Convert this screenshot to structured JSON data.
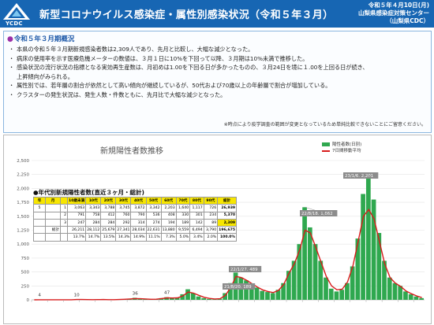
{
  "header": {
    "title": "新型コロナウイルス感染症・属性別感染状況（令和５年３月）",
    "date": "令和５年４月10日(月)",
    "org": "山梨県感染症対策センター",
    "org_short": "（山梨県CDC）",
    "logo_text": "YCDC",
    "bg_color": "#1766b3"
  },
  "summary": {
    "heading": "令和５年３月期概況",
    "bullets": [
      "本県の令和５年３月期新規感染者数は2,309人であり、先月と比較し、大幅な減少となった。",
      "病床の使用率を示す医療危機メーターの数値は、３月１日に10%を下回って以降、３月期は10%未満で推移した。",
      "感染状況の流行状況の指標となる実効再生産数は、月初めは1.00を下回る日が多かったものの、３月24日を境に１.00を上回る日が続き、",
      "上昇傾向がみられる。",
      "属性別では、若年層の割合が依然として高い傾向が継続しているが、50代および70歳以上の年齢層で割合が増加している。",
      "クラスターの発生状況は、発生人数・件数ともに、先月比で大幅な減少となった。"
    ],
    "note": "※時点により疫学調査の範囲が変更となっているため単純比較できないことにご留意ください。"
  },
  "chart": {
    "title": "新規陽性者数推移",
    "legend_bar": "陽性者数(日別)",
    "legend_line": "7日間移動平均",
    "bar_color": "#2fa84f",
    "line_color": "#d81b1b"
  },
  "table": {
    "title": "●年代別新規陽性者数(直近３ヶ月・総計)",
    "headers": [
      "年",
      "月",
      "",
      "10歳未満",
      "10代",
      "20代",
      "30代",
      "40代",
      "50代",
      "60代",
      "70代",
      "80代",
      "90代",
      "総計"
    ],
    "rows": [
      {
        "year": "5",
        "month": "",
        "sub": "1",
        "values": [
          "3,063",
          "3,343",
          "3,788",
          "3,745",
          "3,872",
          "3,342",
          "2,203",
          "1,640",
          "1,117",
          "726"
        ],
        "total": "26,939"
      },
      {
        "year": "",
        "month": "",
        "sub": "2",
        "values": [
          "791",
          "758",
          "412",
          "760",
          "790",
          "536",
          "408",
          "330",
          "301",
          "234"
        ],
        "total": "5,370"
      },
      {
        "year": "",
        "month": "",
        "sub": "3",
        "values": [
          "247",
          "284",
          "284",
          "292",
          "314",
          "274",
          "194",
          "189",
          "142",
          "89"
        ],
        "total": "2,309"
      },
      {
        "year": "",
        "month": "総計",
        "sub": "",
        "values": [
          "26,211",
          "28,112",
          "25,679",
          "27,341",
          "28,034",
          "22,631",
          "13,880",
          "9,559",
          "6,494",
          "3,790"
        ],
        "total": "196,675"
      },
      {
        "year": "",
        "month": "",
        "sub": "",
        "values": [
          "13.7%",
          "14.7%",
          "13.5%",
          "14.3%",
          "14.9%",
          "11.1%",
          "7.3%",
          "5.0%",
          "3.4%",
          "2.0%"
        ],
        "total": "100.0%"
      }
    ]
  },
  "annotations": {
    "peak_labels": [
      "23/1/6. 2,201",
      "22/8/18. 1,662"
    ],
    "small_labels": [
      "22/1/27. 489",
      "21/8/20. 189"
    ],
    "wave_labels": [
      "4",
      "10",
      "36",
      "47"
    ]
  },
  "chart_data": {
    "type": "bar",
    "title": "新規陽性者数推移",
    "xlabel": "",
    "ylabel": "",
    "ylim": [
      0,
      2500
    ],
    "yticks": [
      "0",
      "250",
      "500",
      "750",
      "1,000",
      "1,250",
      "1,500",
      "1,750",
      "2,000",
      "2,250",
      "2,500"
    ],
    "series": [
      {
        "name": "陽性者数(日別)",
        "kind": "bar",
        "values": [
          0,
          4,
          2,
          1,
          0,
          3,
          0,
          1,
          10,
          5,
          2,
          3,
          4,
          6,
          2,
          1,
          8,
          12,
          20,
          36,
          18,
          10,
          6,
          12,
          30,
          47,
          30,
          40,
          100,
          189,
          120,
          60,
          30,
          15,
          8,
          20,
          120,
          300,
          489,
          400,
          350,
          280,
          220,
          160,
          140,
          120,
          180,
          300,
          520,
          700,
          1000,
          1662,
          1300,
          1000,
          700,
          400,
          200,
          150,
          180,
          300,
          600,
          1100,
          1900,
          2201,
          1800,
          1200,
          700,
          400,
          300,
          250,
          150,
          100,
          60,
          30
        ]
      },
      {
        "name": "7日間移動平均",
        "kind": "line",
        "values": [
          0,
          2,
          2,
          1,
          1,
          2,
          1,
          1,
          5,
          5,
          4,
          3,
          4,
          5,
          3,
          3,
          6,
          10,
          15,
          22,
          20,
          15,
          10,
          12,
          22,
          35,
          32,
          35,
          70,
          140,
          120,
          80,
          45,
          25,
          15,
          20,
          80,
          220,
          420,
          400,
          350,
          290,
          230,
          180,
          150,
          130,
          170,
          280,
          480,
          650,
          900,
          1250,
          1200,
          950,
          680,
          420,
          250,
          180,
          190,
          320,
          600,
          1050,
          1500,
          1620,
          1450,
          1050,
          650,
          400,
          300,
          240,
          160,
          110,
          70,
          40
        ]
      }
    ]
  }
}
